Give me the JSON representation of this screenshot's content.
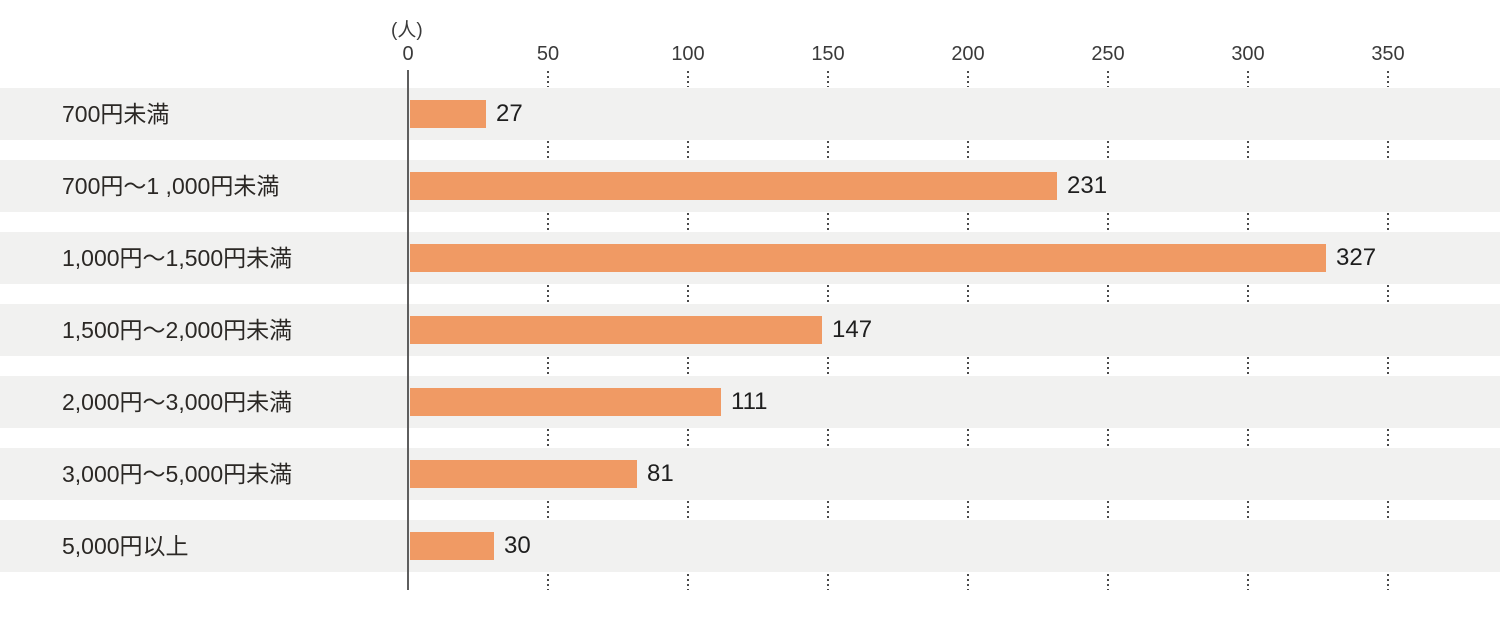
{
  "chart": {
    "unit_label": "(人)",
    "bar_color": "#F09A64",
    "band_color": "#F1F1F0",
    "axis_color": "#5E5E5E",
    "grid_dot_color": "#4A4A4A",
    "label_color": "#2B2825",
    "value_color": "#1E1E1E",
    "tick_color": "#3A3A3A"
  },
  "chart_data": {
    "type": "bar",
    "orientation": "horizontal",
    "title": "",
    "xlabel": "(人)",
    "ylabel": "",
    "categories": [
      "700円未満",
      "700円〜1 ,000円未満",
      "1,000円〜1,500円未満",
      "1,500円〜2,000円未満",
      "2,000円〜3,000円未満",
      "3,000円〜5,000円未満",
      "5,000円以上"
    ],
    "values": [
      27,
      231,
      327,
      147,
      111,
      81,
      30
    ],
    "value_labels": [
      "27",
      "231",
      "327",
      "147",
      "111",
      "81",
      "30"
    ],
    "x_ticks": [
      0,
      50,
      100,
      150,
      200,
      250,
      300,
      350
    ],
    "xlim": [
      0,
      390
    ],
    "grid": "dotted-vertical-segments-between-row-bands",
    "legend": "none",
    "bar_value_label_position": "right-of-bar"
  }
}
